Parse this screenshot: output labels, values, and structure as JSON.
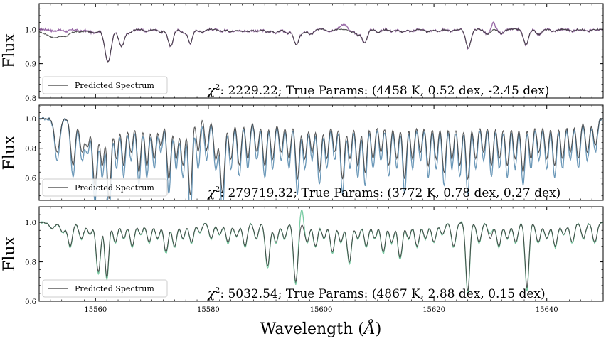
{
  "chart_data": [
    {
      "type": "line",
      "panel": "top",
      "ylabel": "Flux",
      "xlim": [
        15550,
        15650
      ],
      "ylim": [
        0.8,
        1.075
      ],
      "yticks": [
        0.8,
        0.9,
        1.0
      ],
      "ytick_labels": [
        "0.8",
        "0.9",
        "1.0"
      ],
      "legend": {
        "placement": "lower-left",
        "entries": [
          "Predicted Spectrum"
        ]
      },
      "annotation": {
        "chi_symbol": "χ",
        "chi_sup": "2",
        "text": ": 2229.22; True Params: (4458 K, 0.52 dex, -2.45 dex)"
      },
      "true_color": "#8e5a9e",
      "pred_color": "#3a3a3a",
      "lines": [
        [
          15552.5,
          0.005,
          0.6
        ],
        [
          15554.8,
          0.006,
          0.6
        ],
        [
          15557.4,
          0.005,
          0.6
        ],
        [
          15559.6,
          0.01,
          0.8
        ],
        [
          15562.2,
          0.095,
          0.55
        ],
        [
          15564.6,
          0.05,
          0.5
        ],
        [
          15566.0,
          0.01,
          0.5
        ],
        [
          15569.0,
          0.006,
          0.5
        ],
        [
          15571.6,
          0.008,
          0.5
        ],
        [
          15573.3,
          0.05,
          0.45
        ],
        [
          15575.6,
          0.01,
          0.5
        ],
        [
          15576.8,
          0.04,
          0.4
        ],
        [
          15578.8,
          0.008,
          0.5
        ],
        [
          15582.2,
          0.006,
          0.5
        ],
        [
          15584.0,
          0.007,
          0.5
        ],
        [
          15585.9,
          0.006,
          0.5
        ],
        [
          15587.1,
          0.006,
          0.4
        ],
        [
          15588.6,
          0.006,
          0.5
        ],
        [
          15590.5,
          0.008,
          0.5
        ],
        [
          15592.0,
          0.01,
          0.5
        ],
        [
          15594.0,
          0.012,
          0.5
        ],
        [
          15595.6,
          0.045,
          0.45
        ],
        [
          15596.8,
          0.01,
          0.5
        ],
        [
          15598.2,
          0.015,
          0.45
        ],
        [
          15601.5,
          0.005,
          0.5
        ],
        [
          15605.4,
          0.008,
          0.5
        ],
        [
          15606.5,
          0.015,
          0.4
        ],
        [
          15607.7,
          0.04,
          0.45
        ],
        [
          15610.2,
          0.008,
          0.5
        ],
        [
          15612.6,
          0.006,
          0.5
        ],
        [
          15614.3,
          0.008,
          0.5
        ],
        [
          15616.0,
          0.006,
          0.5
        ],
        [
          15618.9,
          0.008,
          0.5
        ],
        [
          15620.7,
          0.006,
          0.5
        ],
        [
          15623.0,
          0.006,
          0.5
        ],
        [
          15626.1,
          0.055,
          0.45
        ],
        [
          15629.5,
          0.015,
          0.5
        ],
        [
          15632.0,
          0.012,
          0.5
        ],
        [
          15636.3,
          0.045,
          0.45
        ],
        [
          15638.6,
          0.015,
          0.5
        ],
        [
          15641.2,
          0.006,
          0.5
        ],
        [
          15644.5,
          0.005,
          0.5
        ],
        [
          15647.3,
          0.006,
          0.5
        ]
      ]
    },
    {
      "type": "line",
      "panel": "middle",
      "ylabel": "Flux",
      "xlim": [
        15550,
        15650
      ],
      "ylim": [
        0.45,
        1.09
      ],
      "yticks": [
        0.6,
        0.8,
        1.0
      ],
      "ytick_labels": [
        "0.6",
        "0.8",
        "1.0"
      ],
      "legend": {
        "placement": "lower-left",
        "entries": [
          "Predicted Spectrum"
        ]
      },
      "annotation": {
        "chi_symbol": "χ",
        "chi_sup": "2",
        "text": ": 279719.32; True Params: (3772 K, 0.78 dex, 0.27 dex)"
      },
      "true_color": "#5b8db0",
      "pred_color": "#3a3a3a",
      "lines": [
        [
          15553.2,
          0.25,
          0.45
        ],
        [
          15556.0,
          0.35,
          0.4
        ],
        [
          15557.6,
          0.25,
          0.4
        ],
        [
          15558.6,
          0.2,
          0.35
        ],
        [
          15559.9,
          0.5,
          0.4
        ],
        [
          15561.2,
          0.35,
          0.35
        ],
        [
          15562.4,
          0.6,
          0.35
        ],
        [
          15563.7,
          0.3,
          0.35
        ],
        [
          15565.0,
          0.35,
          0.35
        ],
        [
          15566.3,
          0.25,
          0.35
        ],
        [
          15567.7,
          0.4,
          0.35
        ],
        [
          15569.1,
          0.35,
          0.35
        ],
        [
          15570.4,
          0.3,
          0.35
        ],
        [
          15571.6,
          0.2,
          0.35
        ],
        [
          15573.0,
          0.45,
          0.35
        ],
        [
          15574.3,
          0.3,
          0.35
        ],
        [
          15575.5,
          0.35,
          0.35
        ],
        [
          15576.8,
          0.6,
          0.35
        ],
        [
          15578.2,
          0.3,
          0.35
        ],
        [
          15579.7,
          0.25,
          0.35
        ],
        [
          15581.3,
          0.3,
          0.35
        ],
        [
          15582.5,
          0.55,
          0.4
        ],
        [
          15584.0,
          0.3,
          0.35
        ],
        [
          15585.5,
          0.35,
          0.35
        ],
        [
          15587.0,
          0.3,
          0.35
        ],
        [
          15588.6,
          0.25,
          0.35
        ],
        [
          15590.0,
          0.35,
          0.35
        ],
        [
          15591.4,
          0.3,
          0.35
        ],
        [
          15592.9,
          0.25,
          0.35
        ],
        [
          15594.3,
          0.3,
          0.35
        ],
        [
          15595.8,
          0.45,
          0.35
        ],
        [
          15597.1,
          0.3,
          0.35
        ],
        [
          15598.4,
          0.25,
          0.35
        ],
        [
          15599.7,
          0.4,
          0.35
        ],
        [
          15601.0,
          0.3,
          0.35
        ],
        [
          15602.4,
          0.25,
          0.35
        ],
        [
          15603.8,
          0.45,
          0.35
        ],
        [
          15605.1,
          0.3,
          0.35
        ],
        [
          15606.5,
          0.35,
          0.35
        ],
        [
          15607.8,
          0.4,
          0.35
        ],
        [
          15609.2,
          0.3,
          0.35
        ],
        [
          15610.6,
          0.25,
          0.35
        ],
        [
          15612.0,
          0.35,
          0.35
        ],
        [
          15613.4,
          0.3,
          0.35
        ],
        [
          15614.8,
          0.45,
          0.35
        ],
        [
          15616.2,
          0.3,
          0.35
        ],
        [
          15617.6,
          0.25,
          0.35
        ],
        [
          15619.0,
          0.35,
          0.35
        ],
        [
          15620.4,
          0.3,
          0.35
        ],
        [
          15621.8,
          0.4,
          0.35
        ],
        [
          15623.2,
          0.3,
          0.35
        ],
        [
          15624.6,
          0.35,
          0.35
        ],
        [
          15626.0,
          0.45,
          0.35
        ],
        [
          15627.4,
          0.3,
          0.35
        ],
        [
          15628.8,
          0.25,
          0.35
        ],
        [
          15630.2,
          0.35,
          0.35
        ],
        [
          15631.6,
          0.3,
          0.35
        ],
        [
          15633.0,
          0.35,
          0.35
        ],
        [
          15634.4,
          0.3,
          0.35
        ],
        [
          15635.8,
          0.4,
          0.35
        ],
        [
          15637.2,
          0.3,
          0.35
        ],
        [
          15638.6,
          0.25,
          0.35
        ],
        [
          15640.0,
          0.3,
          0.35
        ],
        [
          15641.4,
          0.35,
          0.35
        ],
        [
          15642.8,
          0.3,
          0.35
        ],
        [
          15644.2,
          0.25,
          0.35
        ],
        [
          15645.6,
          0.3,
          0.35
        ],
        [
          15647.2,
          0.25,
          0.35
        ],
        [
          15648.6,
          0.2,
          0.35
        ]
      ]
    },
    {
      "type": "line",
      "panel": "bottom",
      "ylabel": "Flux",
      "xlabel": "Wavelength (Å)",
      "xlim": [
        15550,
        15650
      ],
      "xticks": [
        15560,
        15580,
        15600,
        15620,
        15640
      ],
      "xtick_labels": [
        "15560",
        "15580",
        "15600",
        "15620",
        "15640"
      ],
      "ylim": [
        0.6,
        1.08
      ],
      "yticks": [
        0.6,
        0.8,
        1.0
      ],
      "ytick_labels": [
        "0.6",
        "0.8",
        "1.0"
      ],
      "legend": {
        "placement": "lower-left",
        "entries": [
          "Predicted Spectrum"
        ]
      },
      "annotation": {
        "chi_symbol": "χ",
        "chi_sup": "2",
        "text": ": 5032.54; True Params: (4867 K, 2.88 dex, 0.15 dex)"
      },
      "true_color": "#6cc79a",
      "pred_color": "#3a3a3a",
      "lines": [
        [
          15552.3,
          0.03,
          0.5
        ],
        [
          15554.2,
          0.05,
          0.45
        ],
        [
          15555.5,
          0.12,
          0.4
        ],
        [
          15557.5,
          0.08,
          0.45
        ],
        [
          15559.0,
          0.06,
          0.4
        ],
        [
          15560.5,
          0.25,
          0.4
        ],
        [
          15562.0,
          0.28,
          0.35
        ],
        [
          15563.5,
          0.1,
          0.4
        ],
        [
          15565.0,
          0.08,
          0.4
        ],
        [
          15566.5,
          0.12,
          0.4
        ],
        [
          15568.0,
          0.06,
          0.4
        ],
        [
          15569.5,
          0.1,
          0.4
        ],
        [
          15571.0,
          0.08,
          0.4
        ],
        [
          15572.5,
          0.15,
          0.4
        ],
        [
          15574.0,
          0.12,
          0.4
        ],
        [
          15575.5,
          0.08,
          0.4
        ],
        [
          15577.0,
          0.1,
          0.4
        ],
        [
          15578.5,
          0.05,
          0.4
        ],
        [
          15580.5,
          0.08,
          0.4
        ],
        [
          15582.0,
          0.06,
          0.4
        ],
        [
          15583.5,
          0.1,
          0.4
        ],
        [
          15585.0,
          0.07,
          0.4
        ],
        [
          15586.5,
          0.12,
          0.4
        ],
        [
          15588.5,
          0.08,
          0.4
        ],
        [
          15590.5,
          0.22,
          0.4
        ],
        [
          15592.0,
          0.1,
          0.4
        ],
        [
          15593.5,
          0.08,
          0.4
        ],
        [
          15595.5,
          0.3,
          0.4
        ],
        [
          15597.5,
          0.1,
          0.4
        ],
        [
          15599.0,
          0.12,
          0.4
        ],
        [
          15600.5,
          0.08,
          0.4
        ],
        [
          15602.0,
          0.15,
          0.4
        ],
        [
          15603.5,
          0.1,
          0.4
        ],
        [
          15605.0,
          0.2,
          0.4
        ],
        [
          15606.5,
          0.08,
          0.4
        ],
        [
          15608.0,
          0.12,
          0.4
        ],
        [
          15609.5,
          0.08,
          0.4
        ],
        [
          15611.0,
          0.15,
          0.4
        ],
        [
          15612.5,
          0.1,
          0.4
        ],
        [
          15614.0,
          0.18,
          0.4
        ],
        [
          15615.5,
          0.08,
          0.4
        ],
        [
          15617.0,
          0.12,
          0.4
        ],
        [
          15618.5,
          0.08,
          0.4
        ],
        [
          15620.0,
          0.1,
          0.4
        ],
        [
          15621.5,
          0.06,
          0.4
        ],
        [
          15623.5,
          0.12,
          0.4
        ],
        [
          15626.0,
          0.35,
          0.35
        ],
        [
          15628.0,
          0.1,
          0.4
        ],
        [
          15630.0,
          0.08,
          0.4
        ],
        [
          15631.5,
          0.12,
          0.4
        ],
        [
          15633.0,
          0.08,
          0.4
        ],
        [
          15634.5,
          0.1,
          0.4
        ],
        [
          15636.5,
          0.33,
          0.35
        ],
        [
          15638.5,
          0.1,
          0.4
        ],
        [
          15640.0,
          0.08,
          0.4
        ],
        [
          15641.5,
          0.12,
          0.4
        ],
        [
          15643.0,
          0.06,
          0.4
        ],
        [
          15644.5,
          0.1,
          0.4
        ],
        [
          15646.5,
          0.08,
          0.4
        ],
        [
          15648.5,
          0.1,
          0.4
        ]
      ]
    }
  ],
  "x_axis": {
    "label_main": "Wavelength (",
    "label_unit": "Å",
    "label_close": ")"
  }
}
